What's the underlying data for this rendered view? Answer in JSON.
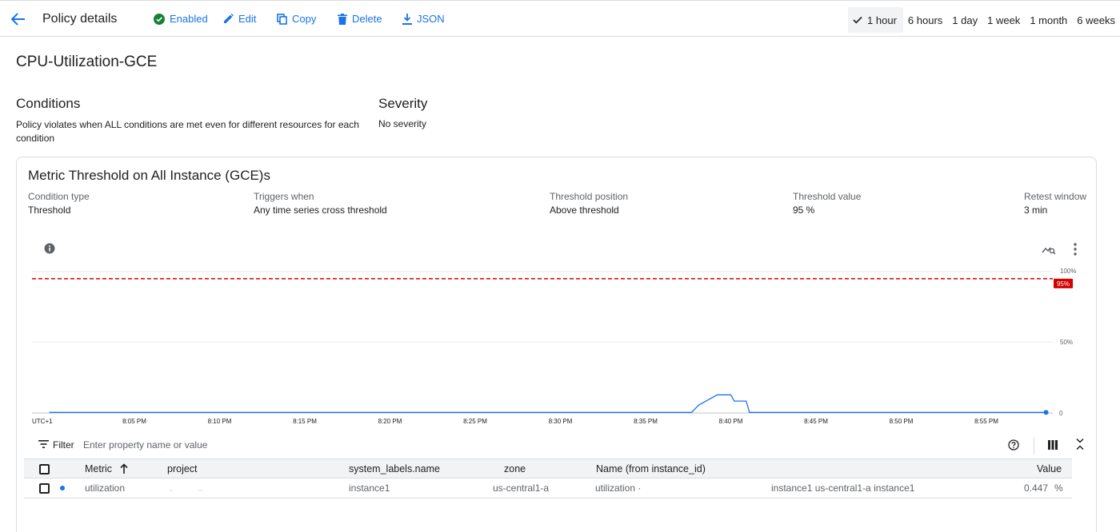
{
  "header": {
    "title": "Policy details",
    "status": "Enabled",
    "actions": {
      "edit": "Edit",
      "copy": "Copy",
      "delete": "Delete",
      "json": "JSON"
    },
    "time_ranges": [
      "1 hour",
      "6 hours",
      "1 day",
      "1 week",
      "1 month",
      "6 weeks"
    ],
    "selected_range": "1 hour"
  },
  "policy": {
    "name": "CPU-Utilization-GCE"
  },
  "conditions": {
    "title": "Conditions",
    "description": "Policy violates when ALL conditions are met even for different resources for each condition"
  },
  "severity": {
    "title": "Severity",
    "value": "No severity"
  },
  "condition_card": {
    "title": "Metric Threshold on All Instance (GCE)s",
    "fields": [
      {
        "label": "Condition type",
        "value": "Threshold"
      },
      {
        "label": "Triggers when",
        "value": "Any time series cross threshold"
      },
      {
        "label": "Threshold position",
        "value": "Above threshold"
      },
      {
        "label": "Threshold value",
        "value": "95 %"
      },
      {
        "label": "Retest window",
        "value": "3 min"
      }
    ]
  },
  "chart_data": {
    "type": "line",
    "timezone_label": "UTC+1",
    "x_tick_labels": [
      "8:05 PM",
      "8:10 PM",
      "8:15 PM",
      "8:20 PM",
      "8:25 PM",
      "8:30 PM",
      "8:35 PM",
      "8:40 PM",
      "8:45 PM",
      "8:50 PM",
      "8:55 PM"
    ],
    "y_tick_labels": [
      "100%",
      "50%",
      "0"
    ],
    "ylim": [
      0,
      100
    ],
    "threshold": {
      "value": 95,
      "label": "95%",
      "color": "#d50000"
    },
    "series_color": "#1a73e8",
    "x_minutes": [
      0,
      37.7,
      38.1,
      39.2,
      40.0,
      40.2,
      40.9,
      41.1,
      58.5
    ],
    "series": [
      {
        "values": [
          0.4,
          0.4,
          5.4,
          12.8,
          12.8,
          8.4,
          8.4,
          0.4,
          0.4
        ]
      }
    ],
    "last_point": {
      "x_minutes": 58.5,
      "value": 0.4
    },
    "grid": true
  },
  "filter": {
    "label": "Filter",
    "placeholder": "Enter property name or value"
  },
  "table": {
    "columns": [
      "Metric",
      "project",
      "system_labels.name",
      "zone",
      "Name (from instance_id)",
      "Value"
    ],
    "rows": [
      {
        "metric": "utilization",
        "system_labels_name": "instance1",
        "zone": "us-central1-a",
        "name_prefix": "utilization ·",
        "name_suffix": "instance1 us-central1-a instance1",
        "value": "0.447",
        "unit": "%"
      }
    ]
  },
  "colors": {
    "accent": "#1a73e8",
    "enabled_green": "#188038",
    "threshold_red": "#d50000"
  }
}
